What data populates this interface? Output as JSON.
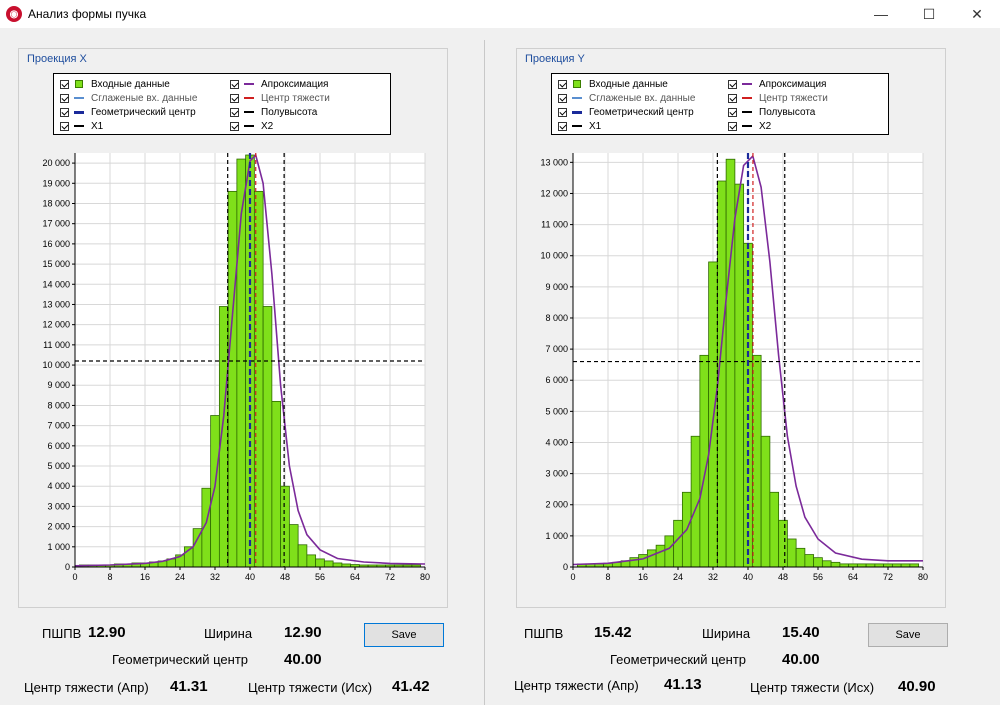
{
  "window": {
    "title": "Анализ формы пучка",
    "icon": "app-logo-icon",
    "controls": [
      "minimize-icon",
      "maximize-icon",
      "close-icon"
    ]
  },
  "legend_labels": {
    "input": "Входные данные",
    "approx": "Апроксимация",
    "smooth": "Сглаженые вх. данные",
    "centroid": "Центр тяжести",
    "geo": "Геометрический центр",
    "half": "Полувысота",
    "x1": "X1",
    "x2": "X2"
  },
  "legend_colors": {
    "input": "#7fe01a",
    "approx": "#7b2a9a",
    "smooth": "#5a8fd0",
    "centroid": "#d02020",
    "geo": "#1a2a9a",
    "half": "#000000"
  },
  "panels": [
    {
      "group_title": "Проекция X",
      "stats": {
        "fwhm_label": "ПШПВ",
        "fwhm_value": "12.90",
        "width_label": "Ширина",
        "width_value": "12.90",
        "geo_label": "Геометрический центр",
        "geo_value": "40.00",
        "cg_apr_label": "Центр тяжести (Апр)",
        "cg_apr_value": "41.31",
        "cg_src_label": "Центр тяжести (Исх)",
        "cg_src_value": "41.42"
      },
      "save_label": "Save"
    },
    {
      "group_title": "Проекция Y",
      "stats": {
        "fwhm_label": "ПШПВ",
        "fwhm_value": "15.42",
        "width_label": "Ширина",
        "width_value": "15.40",
        "geo_label": "Геометрический центр",
        "geo_value": "40.00",
        "cg_apr_label": "Центр тяжести (Апр)",
        "cg_apr_value": "41.13",
        "cg_src_label": "Центр тяжести (Исх)",
        "cg_src_value": "40.90"
      },
      "save_label": "Save"
    }
  ],
  "chart_data": [
    {
      "type": "bar",
      "xlim": [
        0,
        80
      ],
      "ylim": [
        0,
        20500
      ],
      "xticks": [
        0,
        8,
        16,
        24,
        32,
        40,
        48,
        56,
        64,
        72,
        80
      ],
      "xtick_labels": [
        "0",
        "8",
        "16",
        "24",
        "32",
        "40",
        "48",
        "56",
        "64",
        "72",
        "80"
      ],
      "yticks": [
        0,
        1000,
        2000,
        3000,
        4000,
        5000,
        6000,
        7000,
        8000,
        9000,
        10000,
        11000,
        12000,
        13000,
        14000,
        15000,
        16000,
        17000,
        18000,
        19000,
        20000
      ],
      "ytick_labels": [
        "0",
        "1 000",
        "2 000",
        "3 000",
        "4 000",
        "5 000",
        "6 000",
        "7 000",
        "8 000",
        "9 000",
        "10 000",
        "11 000",
        "12 000",
        "13 000",
        "14 000",
        "15 000",
        "16 000",
        "17 000",
        "18 000",
        "19 000",
        "20 000"
      ],
      "grid": true,
      "bin_width": 2,
      "x": [
        2,
        4,
        6,
        8,
        10,
        12,
        14,
        16,
        18,
        20,
        22,
        24,
        26,
        28,
        30,
        32,
        34,
        36,
        38,
        40,
        42,
        44,
        46,
        48,
        50,
        52,
        54,
        56,
        58,
        60,
        62,
        64,
        66,
        68,
        70,
        72,
        74,
        76,
        78
      ],
      "values": [
        100,
        100,
        100,
        100,
        150,
        150,
        200,
        200,
        250,
        300,
        400,
        600,
        1000,
        1900,
        3900,
        7500,
        12900,
        18600,
        20200,
        20400,
        18600,
        12900,
        8200,
        4000,
        2100,
        1100,
        600,
        400,
        300,
        200,
        150,
        120,
        100,
        100,
        100,
        100,
        100,
        100,
        100
      ],
      "approximation": [
        [
          0,
          60
        ],
        [
          8,
          100
        ],
        [
          16,
          180
        ],
        [
          20,
          280
        ],
        [
          24,
          520
        ],
        [
          27,
          1000
        ],
        [
          30,
          2200
        ],
        [
          32,
          4000
        ],
        [
          34,
          7500
        ],
        [
          36,
          12500
        ],
        [
          38,
          17500
        ],
        [
          40,
          20100
        ],
        [
          41.3,
          20400
        ],
        [
          43,
          19000
        ],
        [
          45,
          14500
        ],
        [
          47,
          9000
        ],
        [
          49,
          5000
        ],
        [
          51,
          2800
        ],
        [
          53,
          1600
        ],
        [
          56,
          850
        ],
        [
          60,
          420
        ],
        [
          66,
          250
        ],
        [
          72,
          180
        ],
        [
          80,
          150
        ]
      ],
      "centroid_x": 41.31,
      "geo_center_x": 40.0,
      "x1": 34.9,
      "x2": 47.8,
      "half_height": 10200
    },
    {
      "type": "bar",
      "xlim": [
        0,
        80
      ],
      "ylim": [
        0,
        13300
      ],
      "xticks": [
        0,
        8,
        16,
        24,
        32,
        40,
        48,
        56,
        64,
        72,
        80
      ],
      "xtick_labels": [
        "0",
        "8",
        "16",
        "24",
        "32",
        "40",
        "48",
        "56",
        "64",
        "72",
        "80"
      ],
      "yticks": [
        0,
        1000,
        2000,
        3000,
        4000,
        5000,
        6000,
        7000,
        8000,
        9000,
        10000,
        11000,
        12000,
        13000
      ],
      "ytick_labels": [
        "0",
        "1 000",
        "2 000",
        "3 000",
        "4 000",
        "5 000",
        "6 000",
        "7 000",
        "8 000",
        "9 000",
        "10 000",
        "11 000",
        "12 000",
        "13 000"
      ],
      "grid": true,
      "bin_width": 2,
      "x": [
        2,
        4,
        6,
        8,
        10,
        12,
        14,
        16,
        18,
        20,
        22,
        24,
        26,
        28,
        30,
        32,
        34,
        36,
        38,
        40,
        42,
        44,
        46,
        48,
        50,
        52,
        54,
        56,
        58,
        60,
        62,
        64,
        66,
        68,
        70,
        72,
        74,
        76,
        78
      ],
      "values": [
        100,
        100,
        100,
        120,
        150,
        200,
        300,
        400,
        550,
        700,
        1000,
        1500,
        2400,
        4200,
        6800,
        9800,
        12400,
        13100,
        12300,
        10400,
        6800,
        4200,
        2400,
        1500,
        900,
        600,
        400,
        300,
        200,
        150,
        100,
        100,
        100,
        100,
        100,
        100,
        100,
        100,
        100
      ],
      "approximation": [
        [
          0,
          80
        ],
        [
          8,
          120
        ],
        [
          16,
          260
        ],
        [
          22,
          600
        ],
        [
          26,
          1200
        ],
        [
          29,
          2200
        ],
        [
          31,
          3600
        ],
        [
          33,
          5800
        ],
        [
          35,
          8600
        ],
        [
          37,
          11200
        ],
        [
          39,
          12900
        ],
        [
          41.1,
          13200
        ],
        [
          43,
          12200
        ],
        [
          45,
          9800
        ],
        [
          47,
          6800
        ],
        [
          49,
          4200
        ],
        [
          51,
          2600
        ],
        [
          53,
          1600
        ],
        [
          56,
          900
        ],
        [
          60,
          450
        ],
        [
          66,
          250
        ],
        [
          72,
          200
        ],
        [
          80,
          200
        ]
      ],
      "centroid_x": 41.13,
      "geo_center_x": 40.0,
      "x1": 33.0,
      "x2": 48.4,
      "half_height": 6600
    }
  ]
}
